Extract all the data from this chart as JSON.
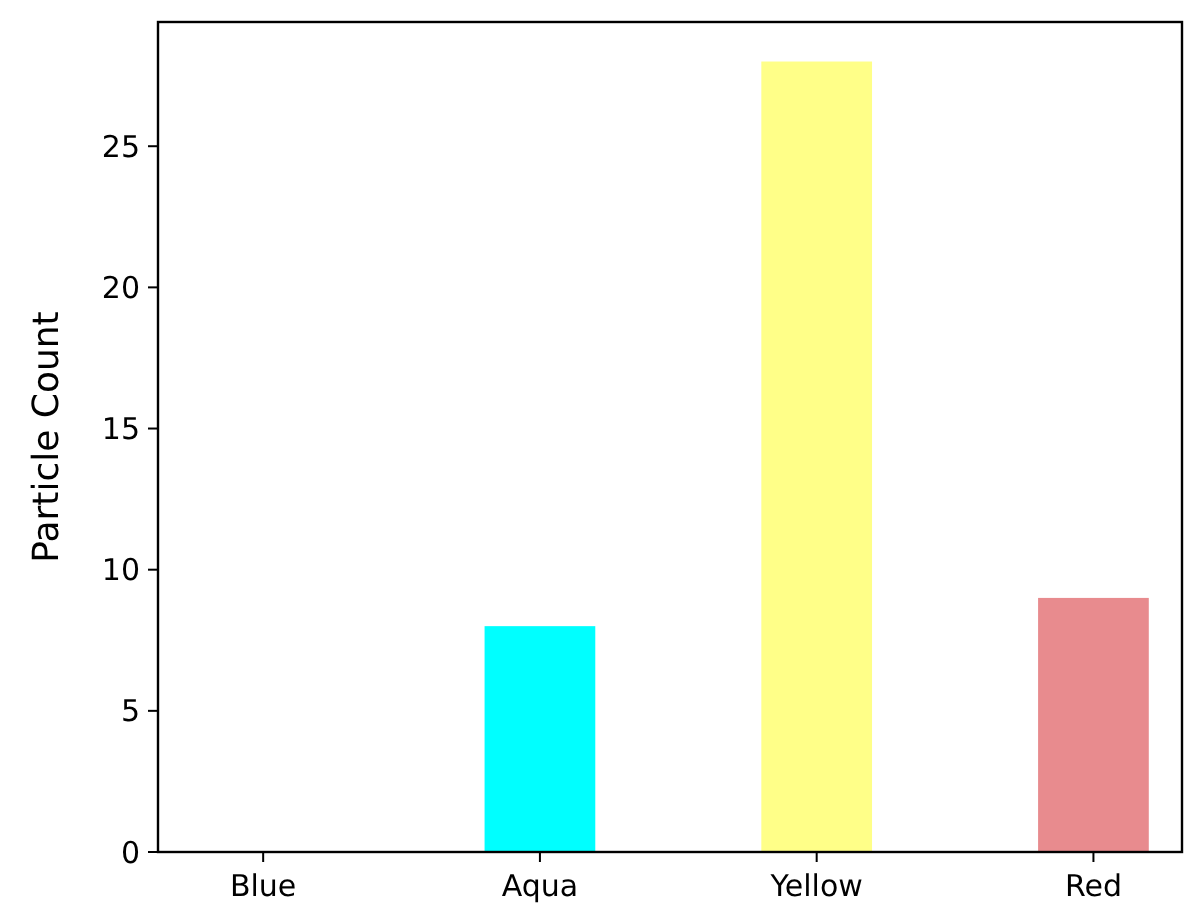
{
  "chart_data": {
    "type": "bar",
    "ylabel": "Particle Count",
    "categories": [
      "Blue",
      "Aqua",
      "Yellow",
      "Red"
    ],
    "values": [
      0,
      8,
      28,
      9
    ],
    "colors": [
      "#0000ff",
      "#00ffff",
      "#ffff88",
      "#e88b8e"
    ],
    "ylim": [
      0,
      29.4
    ],
    "yticks": [
      0,
      5,
      10,
      15,
      20,
      25
    ],
    "grid": false
  }
}
